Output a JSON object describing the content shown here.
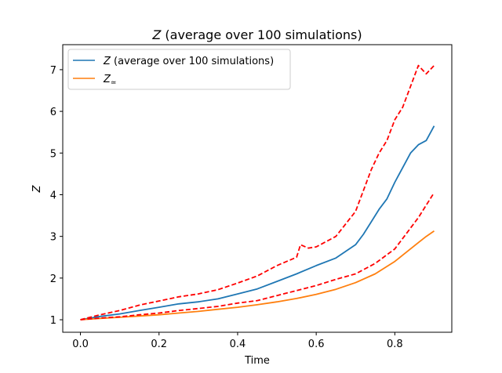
{
  "chart_data": {
    "type": "line",
    "title": {
      "var": "Z",
      "rest": " (average over 100 simulations)"
    },
    "xlabel": "Time",
    "ylabel": "Z",
    "xlim": [
      -0.045,
      0.945
    ],
    "ylim": [
      0.7,
      7.6
    ],
    "xticks": [
      0.0,
      0.2,
      0.4,
      0.6,
      0.8
    ],
    "xtick_labels": [
      "0.0",
      "0.2",
      "0.4",
      "0.6",
      "0.8"
    ],
    "yticks": [
      1,
      2,
      3,
      4,
      5,
      6,
      7
    ],
    "ytick_labels": [
      "1",
      "2",
      "3",
      "4",
      "5",
      "6",
      "7"
    ],
    "grid": false,
    "legend_position": "top-left",
    "series": [
      {
        "key": "mean",
        "legend": {
          "var": "Z",
          "rest": " (average over 100 simulations)"
        },
        "color": "#1f77b4",
        "style": "solid",
        "x": [
          0.0,
          0.05,
          0.1,
          0.15,
          0.2,
          0.25,
          0.3,
          0.35,
          0.4,
          0.45,
          0.5,
          0.55,
          0.6,
          0.65,
          0.7,
          0.72,
          0.74,
          0.76,
          0.78,
          0.8,
          0.82,
          0.84,
          0.86,
          0.88,
          0.9
        ],
        "y": [
          1.0,
          1.08,
          1.14,
          1.22,
          1.3,
          1.38,
          1.43,
          1.5,
          1.62,
          1.74,
          1.92,
          2.1,
          2.3,
          2.48,
          2.8,
          3.05,
          3.35,
          3.65,
          3.9,
          4.3,
          4.65,
          5.0,
          5.2,
          5.3,
          5.65
        ]
      },
      {
        "key": "z_approx",
        "legend": {
          "var": "Z",
          "sub": "≃"
        },
        "color": "#ff7f0e",
        "style": "solid",
        "x": [
          0.0,
          0.05,
          0.1,
          0.15,
          0.2,
          0.25,
          0.3,
          0.35,
          0.4,
          0.45,
          0.5,
          0.55,
          0.6,
          0.65,
          0.7,
          0.75,
          0.8,
          0.82,
          0.84,
          0.86,
          0.88,
          0.9
        ],
        "y": [
          1.0,
          1.03,
          1.06,
          1.09,
          1.12,
          1.16,
          1.2,
          1.25,
          1.3,
          1.36,
          1.43,
          1.51,
          1.61,
          1.73,
          1.89,
          2.1,
          2.4,
          2.55,
          2.7,
          2.85,
          3.0,
          3.13
        ]
      },
      {
        "key": "upper",
        "color": "#ff0000",
        "style": "dashed",
        "x": [
          0.0,
          0.05,
          0.1,
          0.15,
          0.2,
          0.25,
          0.3,
          0.35,
          0.4,
          0.45,
          0.5,
          0.55,
          0.56,
          0.58,
          0.6,
          0.65,
          0.7,
          0.72,
          0.74,
          0.76,
          0.78,
          0.8,
          0.82,
          0.84,
          0.86,
          0.88,
          0.9
        ],
        "y": [
          1.0,
          1.12,
          1.22,
          1.35,
          1.45,
          1.55,
          1.62,
          1.72,
          1.88,
          2.05,
          2.3,
          2.5,
          2.8,
          2.72,
          2.75,
          3.0,
          3.6,
          4.1,
          4.6,
          5.0,
          5.3,
          5.8,
          6.1,
          6.6,
          7.1,
          6.9,
          7.1
        ]
      },
      {
        "key": "lower",
        "color": "#ff0000",
        "style": "dashed",
        "x": [
          0.0,
          0.05,
          0.1,
          0.15,
          0.2,
          0.25,
          0.3,
          0.35,
          0.4,
          0.45,
          0.5,
          0.55,
          0.6,
          0.65,
          0.7,
          0.75,
          0.8,
          0.82,
          0.84,
          0.86,
          0.88,
          0.9
        ],
        "y": [
          1.0,
          1.04,
          1.07,
          1.12,
          1.16,
          1.22,
          1.27,
          1.32,
          1.4,
          1.46,
          1.58,
          1.7,
          1.82,
          1.97,
          2.1,
          2.35,
          2.7,
          2.95,
          3.2,
          3.45,
          3.75,
          4.05
        ]
      }
    ]
  }
}
